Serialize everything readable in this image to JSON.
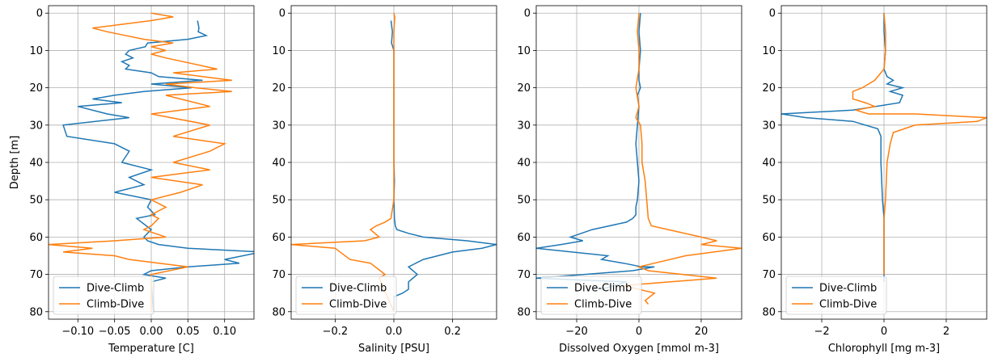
{
  "colors": {
    "dive_climb": "#1f77b4",
    "climb_dive": "#ff7f0e",
    "grid": "#b0b0b0"
  },
  "chart_data": [
    {
      "type": "line",
      "xlabel": "Temperature [C]",
      "ylabel": "Depth [m]",
      "xlim": [
        -0.14,
        0.14
      ],
      "ylim": [
        82,
        -2
      ],
      "xticks": [
        -0.1,
        -0.05,
        0.0,
        0.05,
        0.1
      ],
      "xtick_labels": [
        "−0.10",
        "−0.05",
        "0.00",
        "0.05",
        "0.10"
      ],
      "yticks": [
        0,
        10,
        20,
        30,
        40,
        50,
        60,
        70,
        80
      ],
      "grid": true,
      "legend": "lower-left",
      "series": [
        {
          "name": "Dive-Climb",
          "color": "#1f77b4",
          "x": [
            0.063,
            0.065,
            0.064,
            0.075,
            0.05,
            -0.005,
            -0.008,
            -0.03,
            -0.035,
            -0.025,
            -0.04,
            -0.03,
            -0.035,
            0.0,
            0.01,
            0.07,
            0.0,
            0.055,
            -0.01,
            -0.05,
            -0.08,
            -0.04,
            -0.1,
            -0.06,
            -0.03,
            -0.12,
            -0.115,
            -0.05,
            -0.03,
            -0.04,
            0.0,
            -0.03,
            -0.01,
            -0.05,
            0.0,
            -0.005,
            0.005,
            -0.02,
            0.0,
            -0.01,
            -0.005,
            0.01,
            0.05,
            0.15,
            0.1,
            0.12,
            0.05,
            0.0,
            -0.01,
            0.02,
            0.0,
            0.003
          ],
          "y": [
            2,
            4,
            5,
            6,
            7,
            8,
            9,
            10,
            11,
            12,
            13,
            14,
            15,
            16,
            17,
            18,
            19,
            20,
            21,
            22,
            23,
            24,
            25,
            27,
            28,
            30,
            33,
            35,
            37,
            40,
            42,
            44,
            46,
            48,
            50,
            52,
            54,
            55,
            58,
            60,
            61,
            62,
            63,
            64,
            66,
            67,
            68,
            69,
            70,
            71,
            72,
            80
          ]
        },
        {
          "name": "Climb-Dive",
          "color": "#ff7f0e",
          "x": [
            0.0,
            0.03,
            0.0,
            -0.08,
            -0.06,
            -0.01,
            0.03,
            0.0,
            0.02,
            0.0,
            0.02,
            0.09,
            0.03,
            0.11,
            0.02,
            0.06,
            0.11,
            0.02,
            0.08,
            0.0,
            0.08,
            0.03,
            0.1,
            0.08,
            0.03,
            0.08,
            0.0,
            0.07,
            0.04,
            0.0,
            0.02,
            0.0,
            0.01,
            0.0,
            -0.01,
            0.02,
            -0.05,
            -0.14,
            -0.08,
            -0.12,
            -0.05,
            -0.03,
            0.05,
            0.0,
            0.0
          ],
          "y": [
            0,
            1,
            2,
            4,
            5,
            7,
            8,
            9,
            10,
            11,
            12,
            15,
            16,
            18,
            19,
            20,
            21,
            22,
            25,
            27,
            30,
            33,
            35,
            37,
            40,
            42,
            44,
            46,
            48,
            50,
            52,
            54,
            55,
            57,
            58,
            60,
            61,
            62,
            63,
            64,
            65,
            66,
            68,
            70,
            80
          ]
        }
      ]
    },
    {
      "type": "line",
      "xlabel": "Salinity [PSU]",
      "ylabel": "",
      "xlim": [
        -0.35,
        0.35
      ],
      "ylim": [
        82,
        -2
      ],
      "xticks": [
        -0.2,
        0.0,
        0.2
      ],
      "xtick_labels": [
        "−0.2",
        "0.0",
        "0.2"
      ],
      "yticks": [
        0,
        10,
        20,
        30,
        40,
        50,
        60,
        70,
        80
      ],
      "grid": true,
      "legend": "lower-left",
      "series": [
        {
          "name": "Dive-Climb",
          "color": "#1f77b4",
          "x": [
            -0.01,
            -0.005,
            -0.008,
            0.0,
            0.0,
            0.0,
            0.0,
            0.0,
            0.0,
            0.0,
            0.0,
            0.0,
            0.002,
            0.0,
            0.002,
            0.005,
            0.01,
            0.05,
            0.1,
            0.25,
            0.35,
            0.3,
            0.2,
            0.1,
            0.05,
            0.08,
            0.05,
            0.05,
            0.03,
            0.0,
            0.0
          ],
          "y": [
            2,
            5,
            8,
            10,
            15,
            20,
            25,
            27,
            30,
            32,
            35,
            40,
            45,
            50,
            55,
            57,
            58,
            59,
            60,
            61,
            62,
            63,
            64,
            66,
            68,
            70,
            72,
            74,
            75,
            76,
            80
          ]
        },
        {
          "name": "Climb-Dive",
          "color": "#ff7f0e",
          "x": [
            0.0,
            0.003,
            0.0,
            0.0,
            0.0,
            0.0,
            0.0,
            0.0,
            0.0,
            0.0,
            0.0,
            0.0,
            -0.01,
            -0.03,
            -0.06,
            -0.08,
            -0.05,
            -0.1,
            -0.35,
            -0.2,
            -0.15,
            -0.08,
            -0.03,
            -0.05,
            0.0
          ],
          "y": [
            0,
            1,
            5,
            10,
            15,
            20,
            25,
            30,
            35,
            40,
            45,
            50,
            55,
            56,
            57,
            58,
            60,
            61,
            62,
            63,
            66,
            67,
            70,
            71,
            80
          ]
        }
      ]
    },
    {
      "type": "line",
      "xlabel": "Dissolved Oxygen [mmol m-3]",
      "ylabel": "",
      "xlim": [
        -33,
        33
      ],
      "ylim": [
        82,
        -2
      ],
      "xticks": [
        -20,
        0,
        20
      ],
      "xtick_labels": [
        "−20",
        "0",
        "20"
      ],
      "yticks": [
        0,
        10,
        20,
        30,
        40,
        50,
        60,
        70,
        80
      ],
      "grid": true,
      "legend": "lower-left",
      "series": [
        {
          "name": "Dive-Climb",
          "color": "#1f77b4",
          "x": [
            0.5,
            0.0,
            0.5,
            0.0,
            0.0,
            0.5,
            -0.5,
            0.0,
            -0.5,
            -1.0,
            -0.5,
            0.0,
            -0.5,
            -1.0,
            -1.0,
            -2.0,
            -4.0,
            -15.0,
            -22.0,
            -18.0,
            -25.0,
            -33.0,
            -10.0,
            -12.0,
            -5.0,
            1.0,
            5.0,
            -2.0,
            -33.0,
            -4.0,
            -8.0,
            -12.0
          ],
          "y": [
            0,
            5,
            10,
            15,
            18,
            20,
            22,
            25,
            30,
            35,
            40,
            45,
            50,
            52,
            54,
            55,
            56,
            58,
            60,
            61,
            62,
            63,
            65,
            66,
            67,
            68,
            68,
            69,
            71,
            72,
            73,
            74
          ]
        },
        {
          "name": "Climb-Dive",
          "color": "#ff7f0e",
          "x": [
            0.0,
            -0.5,
            0.0,
            0.0,
            -1.0,
            0.0,
            -1.0,
            0.5,
            1.0,
            1.0,
            2.0,
            2.5,
            3.0,
            4.0,
            20.0,
            25.0,
            20.0,
            33.0,
            15.0,
            5.0,
            0.0,
            3.0,
            25.0,
            -5.0,
            5.0,
            2.0,
            3.0
          ],
          "y": [
            0,
            5,
            10,
            15,
            20,
            25,
            28,
            30,
            35,
            40,
            45,
            50,
            55,
            57,
            60,
            61,
            62,
            63,
            65,
            67,
            68,
            69,
            71,
            73,
            75,
            77,
            78
          ]
        }
      ]
    },
    {
      "type": "line",
      "xlabel": "Chlorophyll [mg m-3]",
      "ylabel": "",
      "xlim": [
        -3.3,
        3.3
      ],
      "ylim": [
        82,
        -2
      ],
      "xticks": [
        -2,
        0,
        2
      ],
      "xtick_labels": [
        "−2",
        "0",
        "2"
      ],
      "yticks": [
        0,
        10,
        20,
        30,
        40,
        50,
        60,
        70,
        80
      ],
      "grid": true,
      "legend": "lower-left",
      "series": [
        {
          "name": "Dive-Climb",
          "color": "#1f77b4",
          "x": [
            0.0,
            0.0,
            0.05,
            0.0,
            0.1,
            0.3,
            0.1,
            0.6,
            0.2,
            0.6,
            0.5,
            -1.0,
            -3.3,
            -2.5,
            -1.0,
            -0.2,
            -0.1,
            -0.1,
            -0.05,
            0.0,
            0.0,
            0.0,
            0.0,
            0.0
          ],
          "y": [
            0,
            5,
            10,
            15,
            17,
            18,
            19,
            20,
            21,
            22,
            24,
            26,
            27,
            28,
            29,
            31,
            33,
            40,
            50,
            55,
            60,
            65,
            70,
            72
          ]
        },
        {
          "name": "Climb-Dive",
          "color": "#ff7f0e",
          "x": [
            0.0,
            0.05,
            0.05,
            0.0,
            -0.3,
            -0.5,
            -0.7,
            -1.0,
            -1.0,
            -0.6,
            -0.3,
            -0.9,
            -0.5,
            1.0,
            3.3,
            3.0,
            1.0,
            0.3,
            0.2,
            0.1,
            0.05,
            0.0,
            0.0,
            0.0,
            0.0
          ],
          "y": [
            0,
            5,
            10,
            15,
            18,
            19,
            20,
            21,
            23,
            24,
            25,
            26,
            27,
            27,
            28,
            29,
            30,
            32,
            35,
            40,
            50,
            55,
            60,
            65,
            70
          ]
        }
      ]
    }
  ]
}
